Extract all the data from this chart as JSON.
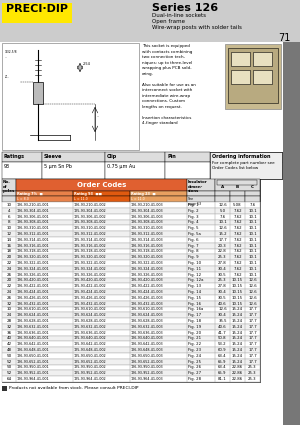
{
  "title": "Series 126",
  "subtitle_lines": [
    "Dual-in-line sockets",
    "Open frame",
    "Wire-wrap posts with solder tails"
  ],
  "page_number": "71",
  "brand": "PRECI·DIP",
  "brand_bg": "#FFE800",
  "description_text": "This socket is equipped\nwith contacts combining\ntwo connection tech-\nniques: up to three-level\nwrapping plus PCB sold-\nering.\n\nAlso suitable for use as an\ninterconnect socket with\nintermediate wire-wrap\nconnections. Custom\nlengths on request.\n\nInsertion characteristics\n4-finger standard",
  "ratings_row": [
    "93",
    "5 μm Sn Pb",
    "0.75 μm Au",
    ""
  ],
  "table_data": [
    [
      "10",
      "126-93-210-41-001",
      "126-93-210-41-002",
      "126-93-210-41-003",
      "Fig. 1",
      "12.6",
      "5.08",
      "7.6"
    ],
    [
      "4",
      "126-93-304-41-001",
      "125-93-304-41-002",
      "126-93-304-41-003",
      "Fig. 2",
      "5.0",
      "7.62",
      "10.1"
    ],
    [
      "6",
      "126-93-306-41-001",
      "125-93-306-41-002",
      "126-93-306-41-003",
      "Fig. 3",
      "7.6",
      "7.62",
      "10.1"
    ],
    [
      "8",
      "126-93-308-41-001",
      "125-93-308-41-002",
      "126-93-308-41-003",
      "Fig. 4",
      "10.1",
      "7.62",
      "10.1"
    ],
    [
      "10",
      "126-93-310-41-001",
      "125-93-310-41-002",
      "126-93-310-41-003",
      "Fig. 5",
      "12.6",
      "7.62",
      "10.1"
    ],
    [
      "12",
      "126-93-312-41-001",
      "125-93-312-41-002",
      "126-93-312-41-003",
      "Fig. 5a",
      "15.2",
      "7.62",
      "10.1"
    ],
    [
      "14",
      "126-93-314-41-001",
      "125-93-314-41-002",
      "126-93-314-41-003",
      "Fig. 6",
      "17.7",
      "7.62",
      "10.1"
    ],
    [
      "16",
      "126-93-316-41-001",
      "125-93-316-41-002",
      "126-93-316-41-003",
      "Fig. 7",
      "20.3",
      "7.62",
      "10.1"
    ],
    [
      "18",
      "126-93-318-41-001",
      "125-93-318-41-002",
      "126-93-318-41-003",
      "Fig. 8",
      "22.8",
      "7.62",
      "10.1"
    ],
    [
      "20",
      "126-93-320-41-001",
      "125-93-320-41-002",
      "126-93-320-41-003",
      "Fig. 9",
      "25.3",
      "7.62",
      "10.1"
    ],
    [
      "22",
      "126-93-322-41-001",
      "125-93-322-41-002",
      "126-93-322-41-003",
      "Fig. 10",
      "27.8",
      "7.62",
      "10.1"
    ],
    [
      "24",
      "126-93-324-41-001",
      "125-93-324-41-002",
      "126-93-324-41-003",
      "Fig. 11",
      "30.4",
      "7.62",
      "10.1"
    ],
    [
      "26",
      "126-93-326-41-001",
      "125-93-326-41-002",
      "126-93-326-41-003",
      "Fig. 12",
      "30.5",
      "7.62",
      "10.1"
    ],
    [
      "20",
      "126-93-420-41-001",
      "125-93-420-41-002",
      "126-93-420-41-003",
      "Fig. 12a",
      "25.3",
      "10.15",
      "12.6"
    ],
    [
      "22",
      "126-93-422-41-001",
      "125-93-422-41-002",
      "126-93-422-41-003",
      "Fig. 13",
      "27.8",
      "10.15",
      "12.6"
    ],
    [
      "24",
      "126-93-424-41-001",
      "125-93-424-41-002",
      "126-93-424-41-003",
      "Fig. 14",
      "30.4",
      "10.15",
      "12.6"
    ],
    [
      "26",
      "126-93-426-41-001",
      "125-93-426-41-002",
      "126-93-426-41-003",
      "Fig. 15",
      "30.5",
      "10.15",
      "12.6"
    ],
    [
      "32",
      "126-93-432-41-001",
      "125-93-432-41-002",
      "126-93-432-41-003",
      "Fig. 16",
      "40.6",
      "10.15",
      "12.6"
    ],
    [
      "10",
      "126-93-610-41-001",
      "125-93-610-41-002",
      "126-93-610-41-003",
      "Fig. 16a",
      "12.6",
      "15.24",
      "17.7"
    ],
    [
      "24",
      "126-93-624-41-001",
      "125-93-624-41-002",
      "126-93-624-41-003",
      "Fig. 17",
      "30.4",
      "15.24",
      "17.7"
    ],
    [
      "28",
      "126-93-628-41-001",
      "125-93-628-41-002",
      "126-93-628-41-003",
      "Fig. 18",
      "35.5",
      "15.24",
      "17.7"
    ],
    [
      "32",
      "126-93-632-41-001",
      "125-93-632-41-002",
      "126-93-632-41-003",
      "Fig. 19",
      "40.6",
      "15.24",
      "17.7"
    ],
    [
      "36",
      "126-93-636-41-001",
      "125-93-636-41-002",
      "126-93-636-41-003",
      "Fig. 20",
      "41.7",
      "15.24",
      "17.7"
    ],
    [
      "40",
      "126-93-640-41-001",
      "125-93-640-41-002",
      "126-93-640-41-003",
      "Fig. 21",
      "50.8",
      "15.24",
      "17.7"
    ],
    [
      "42",
      "126-93-642-41-001",
      "125-93-642-41-002",
      "126-93-642-41-003",
      "Fig. 22",
      "53.2",
      "15.24",
      "17.7"
    ],
    [
      "48",
      "126-93-648-41-001",
      "125-93-648-41-002",
      "126-93-648-41-003",
      "Fig. 23",
      "60.9",
      "15.24",
      "17.7"
    ],
    [
      "50",
      "126-93-650-41-001",
      "125-93-650-41-002",
      "126-93-650-41-003",
      "Fig. 24",
      "63.4",
      "15.24",
      "17.7"
    ],
    [
      "52",
      "126-93-652-41-001",
      "125-93-652-41-002",
      "126-93-652-41-003",
      "Fig. 25",
      "65.9",
      "15.24",
      "17.7"
    ],
    [
      "50",
      "126-93-950-41-001",
      "125-93-950-41-002",
      "126-93-950-41-003",
      "Fig. 26",
      "63.4",
      "22.86",
      "25.3"
    ],
    [
      "52",
      "126-93-952-41-001",
      "125-93-952-41-002",
      "126-93-952-41-003",
      "Fig. 27",
      "65.9",
      "22.86",
      "25.3"
    ],
    [
      "64",
      "126-93-964-41-001",
      "125-93-964-41-002",
      "126-93-964-41-003",
      "Fig. 28",
      "81.1",
      "22.86",
      "25.3"
    ]
  ],
  "footer_note": "Products not available from stock. Please consult PRECI-DIP",
  "subh_colors": [
    "#E8824A",
    "#E05A10",
    "#E8A060"
  ],
  "subh_labels": [
    "Rating 7%  ■",
    "Rating 93  ■■",
    "Rating 23  ■"
  ],
  "sub2_labels": [
    "L = 8.0\n1 Level",
    "L = 11.0\n2 Level",
    "L = 11.0\n2 Level"
  ]
}
